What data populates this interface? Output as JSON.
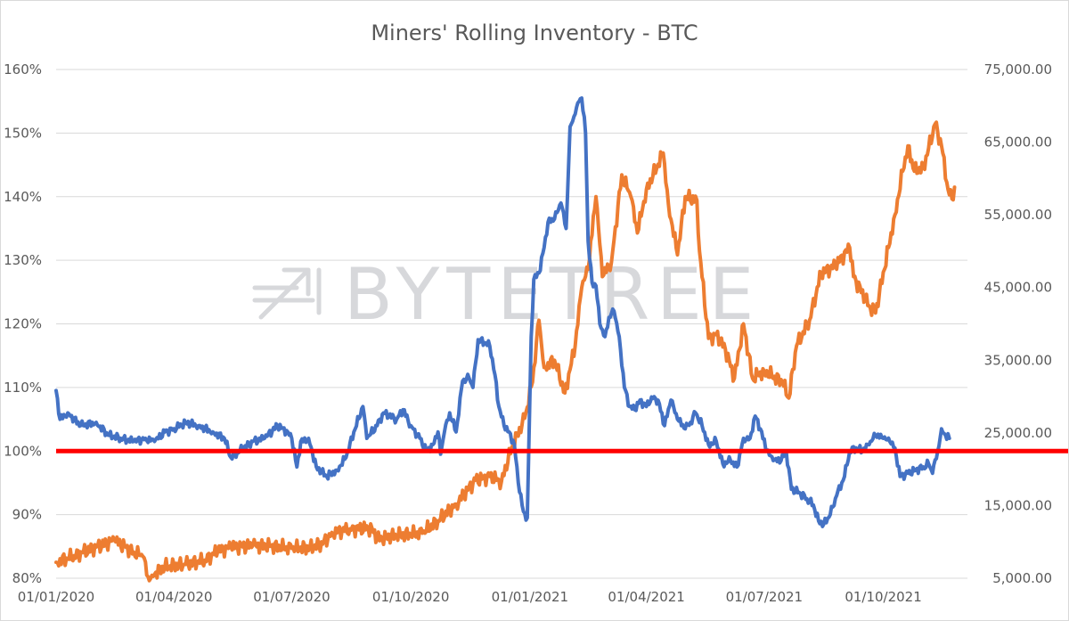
{
  "chart_data": {
    "type": "line",
    "title": "Miners' Rolling Inventory - BTC",
    "watermark": "BYTETREE",
    "x_ticks": [
      "01/01/2020",
      "01/04/2020",
      "01/07/2020",
      "01/10/2020",
      "01/01/2021",
      "01/04/2021",
      "01/07/2021",
      "01/10/2021"
    ],
    "x_range": [
      "2020-01-01",
      "2021-12-05"
    ],
    "y_left": {
      "ticks": [
        "80%",
        "90%",
        "100%",
        "110%",
        "120%",
        "130%",
        "140%",
        "150%",
        "160%"
      ],
      "range": [
        80,
        160
      ],
      "unit": "%"
    },
    "y_right": {
      "ticks": [
        "5,000.00",
        "15,000.00",
        "25,000.00",
        "35,000.00",
        "45,000.00",
        "55,000.00",
        "65,000.00",
        "75,000.00"
      ],
      "range": [
        5000,
        75000
      ]
    },
    "grid": "horizontal",
    "reference_line": {
      "axis": "left",
      "value": 100,
      "color": "#ff0000"
    },
    "series": [
      {
        "axis": "left",
        "color": "#4472c4",
        "points": [
          [
            "2020-01-01",
            109.5
          ],
          [
            "2020-01-04",
            105
          ],
          [
            "2020-01-10",
            106
          ],
          [
            "2020-01-20",
            104
          ],
          [
            "2020-02-01",
            104.5
          ],
          [
            "2020-02-10",
            102.5
          ],
          [
            "2020-02-20",
            102
          ],
          [
            "2020-03-01",
            101.5
          ],
          [
            "2020-03-10",
            102
          ],
          [
            "2020-03-17",
            101.5
          ],
          [
            "2020-03-25",
            103
          ],
          [
            "2020-04-01",
            103.5
          ],
          [
            "2020-04-10",
            104.5
          ],
          [
            "2020-04-20",
            104
          ],
          [
            "2020-05-01",
            103
          ],
          [
            "2020-05-10",
            102
          ],
          [
            "2020-05-15",
            99
          ],
          [
            "2020-05-25",
            100.5
          ],
          [
            "2020-06-01",
            101.5
          ],
          [
            "2020-06-10",
            102
          ],
          [
            "2020-06-20",
            104
          ],
          [
            "2020-06-28",
            103
          ],
          [
            "2020-07-01",
            102
          ],
          [
            "2020-07-05",
            97.5
          ],
          [
            "2020-07-08",
            101.5
          ],
          [
            "2020-07-14",
            102
          ],
          [
            "2020-07-20",
            97.5
          ],
          [
            "2020-07-28",
            96
          ],
          [
            "2020-08-05",
            97
          ],
          [
            "2020-08-12",
            99
          ],
          [
            "2020-08-18",
            103
          ],
          [
            "2020-08-25",
            107
          ],
          [
            "2020-08-28",
            102
          ],
          [
            "2020-09-05",
            104
          ],
          [
            "2020-09-10",
            106
          ],
          [
            "2020-09-20",
            105
          ],
          [
            "2020-09-25",
            106.5
          ],
          [
            "2020-10-01",
            104
          ],
          [
            "2020-10-08",
            102
          ],
          [
            "2020-10-13",
            100
          ],
          [
            "2020-10-18",
            101
          ],
          [
            "2020-10-22",
            103
          ],
          [
            "2020-10-24",
            99.5
          ],
          [
            "2020-10-27",
            103
          ],
          [
            "2020-10-31",
            106
          ],
          [
            "2020-11-05",
            103
          ],
          [
            "2020-11-10",
            111
          ],
          [
            "2020-11-15",
            111.5
          ],
          [
            "2020-11-18",
            110
          ],
          [
            "2020-11-22",
            117.5
          ],
          [
            "2020-11-28",
            117
          ],
          [
            "2020-12-01",
            116.5
          ],
          [
            "2020-12-05",
            112
          ],
          [
            "2020-12-08",
            107
          ],
          [
            "2020-12-12",
            104
          ],
          [
            "2020-12-16",
            103
          ],
          [
            "2020-12-20",
            101
          ],
          [
            "2020-12-23",
            95
          ],
          [
            "2020-12-27",
            90.5
          ],
          [
            "2020-12-30",
            89.5
          ],
          [
            "2021-01-02",
            118
          ],
          [
            "2021-01-04",
            127
          ],
          [
            "2021-01-08",
            128
          ],
          [
            "2021-01-12",
            132
          ],
          [
            "2021-01-15",
            136
          ],
          [
            "2021-01-20",
            136.5
          ],
          [
            "2021-01-25",
            139
          ],
          [
            "2021-01-29",
            135
          ],
          [
            "2021-02-01",
            151
          ],
          [
            "2021-02-05",
            153
          ],
          [
            "2021-02-08",
            155
          ],
          [
            "2021-02-10",
            155.5
          ],
          [
            "2021-02-13",
            150
          ],
          [
            "2021-02-15",
            133
          ],
          [
            "2021-02-18",
            126.5
          ],
          [
            "2021-02-21",
            126
          ],
          [
            "2021-02-24",
            120
          ],
          [
            "2021-02-28",
            118
          ],
          [
            "2021-03-03",
            121
          ],
          [
            "2021-03-07",
            122
          ],
          [
            "2021-03-11",
            118
          ],
          [
            "2021-03-15",
            110
          ],
          [
            "2021-03-19",
            107
          ],
          [
            "2021-03-23",
            106.5
          ],
          [
            "2021-03-27",
            108
          ],
          [
            "2021-04-01",
            107
          ],
          [
            "2021-04-05",
            108.5
          ],
          [
            "2021-04-10",
            108
          ],
          [
            "2021-04-15",
            104
          ],
          [
            "2021-04-20",
            108
          ],
          [
            "2021-04-25",
            105
          ],
          [
            "2021-05-01",
            103.5
          ],
          [
            "2021-05-05",
            104.5
          ],
          [
            "2021-05-09",
            106
          ],
          [
            "2021-05-14",
            104
          ],
          [
            "2021-05-19",
            101
          ],
          [
            "2021-05-25",
            101.5
          ],
          [
            "2021-05-30",
            98
          ],
          [
            "2021-06-05",
            98.5
          ],
          [
            "2021-06-10",
            97.5
          ],
          [
            "2021-06-15",
            102
          ],
          [
            "2021-06-20",
            102
          ],
          [
            "2021-06-24",
            105.5
          ],
          [
            "2021-06-28",
            103.5
          ],
          [
            "2021-07-03",
            100
          ],
          [
            "2021-07-08",
            98.5
          ],
          [
            "2021-07-14",
            98.5
          ],
          [
            "2021-07-18",
            100
          ],
          [
            "2021-07-22",
            94
          ],
          [
            "2021-07-28",
            93.5
          ],
          [
            "2021-08-03",
            92.5
          ],
          [
            "2021-08-08",
            91.5
          ],
          [
            "2021-08-12",
            89
          ],
          [
            "2021-08-16",
            88.5
          ],
          [
            "2021-08-21",
            90
          ],
          [
            "2021-08-26",
            93
          ],
          [
            "2021-09-01",
            96
          ],
          [
            "2021-09-05",
            100
          ],
          [
            "2021-09-10",
            100.5
          ],
          [
            "2021-09-15",
            100
          ],
          [
            "2021-09-20",
            101
          ],
          [
            "2021-09-25",
            102.5
          ],
          [
            "2021-10-01",
            102
          ],
          [
            "2021-10-06",
            101.5
          ],
          [
            "2021-10-10",
            100.5
          ],
          [
            "2021-10-14",
            96
          ],
          [
            "2021-10-20",
            96.5
          ],
          [
            "2021-10-26",
            97
          ],
          [
            "2021-11-01",
            97.5
          ],
          [
            "2021-11-05",
            98
          ],
          [
            "2021-11-08",
            96.5
          ],
          [
            "2021-11-12",
            100
          ],
          [
            "2021-11-15",
            103.5
          ],
          [
            "2021-11-18",
            102.5
          ],
          [
            "2021-11-21",
            102
          ]
        ]
      },
      {
        "axis": "right",
        "color": "#ed7d31",
        "points": [
          [
            "2020-01-01",
            7200
          ],
          [
            "2020-01-15",
            8100
          ],
          [
            "2020-02-01",
            9300
          ],
          [
            "2020-02-15",
            10200
          ],
          [
            "2020-03-01",
            8600
          ],
          [
            "2020-03-08",
            8000
          ],
          [
            "2020-03-12",
            5200
          ],
          [
            "2020-03-15",
            5400
          ],
          [
            "2020-03-25",
            6600
          ],
          [
            "2020-04-10",
            6900
          ],
          [
            "2020-04-25",
            7500
          ],
          [
            "2020-05-05",
            8800
          ],
          [
            "2020-05-15",
            9300
          ],
          [
            "2020-06-01",
            9500
          ],
          [
            "2020-06-15",
            9400
          ],
          [
            "2020-07-01",
            9100
          ],
          [
            "2020-07-15",
            9200
          ],
          [
            "2020-07-25",
            9700
          ],
          [
            "2020-08-01",
            11300
          ],
          [
            "2020-08-15",
            11800
          ],
          [
            "2020-09-01",
            11900
          ],
          [
            "2020-09-05",
            10400
          ],
          [
            "2020-09-20",
            10900
          ],
          [
            "2020-10-10",
            11200
          ],
          [
            "2020-10-22",
            12900
          ],
          [
            "2020-11-05",
            15200
          ],
          [
            "2020-11-20",
            18500
          ],
          [
            "2020-12-01",
            19000
          ],
          [
            "2020-12-10",
            18300
          ],
          [
            "2020-12-18",
            23000
          ],
          [
            "2020-12-28",
            27000
          ],
          [
            "2021-01-03",
            32000
          ],
          [
            "2021-01-08",
            40500
          ],
          [
            "2021-01-12",
            34000
          ],
          [
            "2021-01-20",
            35000
          ],
          [
            "2021-01-28",
            30500
          ],
          [
            "2021-02-05",
            37000
          ],
          [
            "2021-02-10",
            45000
          ],
          [
            "2021-02-15",
            47500
          ],
          [
            "2021-02-21",
            57500
          ],
          [
            "2021-02-26",
            46500
          ],
          [
            "2021-03-05",
            48500
          ],
          [
            "2021-03-13",
            60500
          ],
          [
            "2021-03-20",
            57500
          ],
          [
            "2021-03-25",
            52500
          ],
          [
            "2021-04-01",
            58500
          ],
          [
            "2021-04-14",
            63500
          ],
          [
            "2021-04-18",
            56500
          ],
          [
            "2021-04-25",
            49500
          ],
          [
            "2021-05-01",
            57500
          ],
          [
            "2021-05-10",
            57000
          ],
          [
            "2021-05-12",
            50000
          ],
          [
            "2021-05-19",
            38000
          ],
          [
            "2021-05-25",
            38500
          ],
          [
            "2021-06-01",
            36500
          ],
          [
            "2021-06-08",
            32500
          ],
          [
            "2021-06-15",
            40000
          ],
          [
            "2021-06-22",
            32500
          ],
          [
            "2021-07-01",
            33500
          ],
          [
            "2021-07-15",
            32000
          ],
          [
            "2021-07-20",
            29800
          ],
          [
            "2021-07-26",
            37000
          ],
          [
            "2021-08-05",
            40500
          ],
          [
            "2021-08-14",
            47000
          ],
          [
            "2021-08-25",
            48000
          ],
          [
            "2021-09-05",
            50500
          ],
          [
            "2021-09-08",
            46500
          ],
          [
            "2021-09-20",
            42500
          ],
          [
            "2021-09-25",
            41500
          ],
          [
            "2021-10-05",
            50500
          ],
          [
            "2021-10-10",
            55000
          ],
          [
            "2021-10-16",
            61000
          ],
          [
            "2021-10-20",
            64500
          ],
          [
            "2021-10-25",
            61000
          ],
          [
            "2021-11-01",
            61500
          ],
          [
            "2021-11-10",
            67500
          ],
          [
            "2021-11-15",
            64500
          ],
          [
            "2021-11-20",
            58500
          ],
          [
            "2021-11-23",
            57200
          ],
          [
            "2021-11-25",
            58800
          ]
        ]
      }
    ]
  }
}
